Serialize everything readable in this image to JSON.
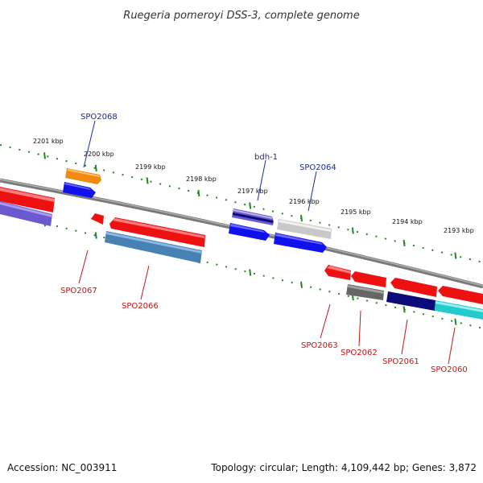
{
  "title": "Ruegeria pomeroyi DSS-3, complete genome",
  "footer": {
    "accession": "Accession: NC_003911",
    "summary": "Topology: circular; Length: 4,109,442 bp; Genes: 3,872"
  },
  "ticks": [
    {
      "label": "2201 kbp",
      "kbp": 2201
    },
    {
      "label": "2200 kbp",
      "kbp": 2200
    },
    {
      "label": "2199 kbp",
      "kbp": 2199
    },
    {
      "label": "2198 kbp",
      "kbp": 2198
    },
    {
      "label": "2197 kbp",
      "kbp": 2197
    },
    {
      "label": "2196 kbp",
      "kbp": 2196
    },
    {
      "label": "2195 kbp",
      "kbp": 2195
    },
    {
      "label": "2194 kbp",
      "kbp": 2194
    },
    {
      "label": "2193 kbp",
      "kbp": 2193
    }
  ],
  "gene_labels_top": [
    "SPO2068",
    "bdh-1",
    "SPO2064"
  ],
  "gene_labels_bottom": [
    "SPO2067",
    "SPO2066",
    "SPO2063",
    "SPO2062",
    "SPO2061",
    "SPO2060"
  ],
  "colors": {
    "backbone": "#7a7a7a",
    "tick_green": "#1f8a1f",
    "red": "#ee1111",
    "blue": "#1111ee",
    "orange": "#f08a10",
    "purple": "#6a5acd",
    "steelblue": "#4682b4",
    "lightgray": "#c8c8c8",
    "darkgray": "#666666",
    "navy": "#0b0b7a",
    "cyan": "#22cccc",
    "label_top": "#1a2aa0",
    "label_bottom": "#cc1111"
  }
}
